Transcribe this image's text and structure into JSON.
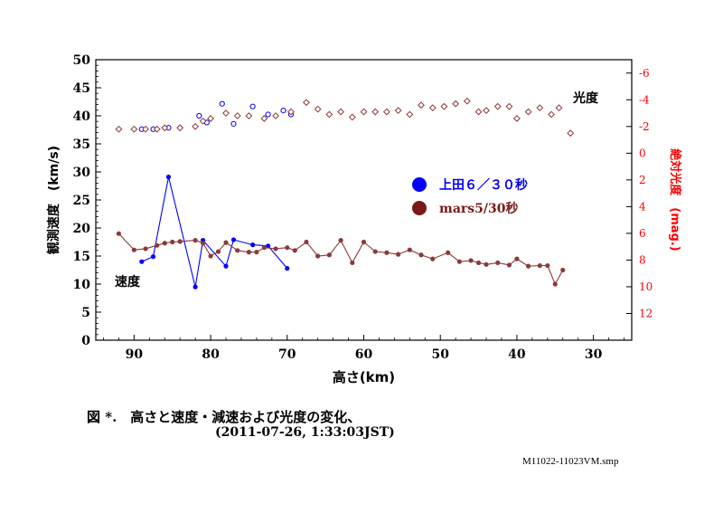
{
  "caption": {
    "line1": "図 *.　高さと速度・減速および光度の変化、",
    "line2": "(2011-07-26,  1:33:03JST)"
  },
  "filename": "M11022-11023VM.smp",
  "chart_data": {
    "type": "scatter",
    "xlabel": "高さ(km)",
    "ylabel": "観測速度　(km/s)",
    "y2label": "絶対光度　(mag.)",
    "xlim": [
      95,
      25
    ],
    "ylim": [
      0,
      50
    ],
    "y2lim": [
      14,
      -7
    ],
    "x_ticks": [
      90,
      80,
      70,
      60,
      50,
      40,
      30
    ],
    "y_ticks": [
      0,
      5,
      10,
      15,
      20,
      25,
      30,
      35,
      40,
      45,
      50
    ],
    "y2_ticks": [
      -6,
      -4,
      -2,
      0,
      2,
      4,
      6,
      8,
      10,
      12
    ],
    "annotations": {
      "magnitude": "光度",
      "velocity": "速度"
    },
    "legend": [
      {
        "name": "上田６／３０秒",
        "color": "#0000ff"
      },
      {
        "name": "mars5/30秒",
        "color": "#7a1818"
      }
    ],
    "colors": {
      "blue": "#0000ff",
      "brown": "#8b3a3a",
      "red": "#ff0000",
      "axis": "#000000"
    },
    "series": [
      {
        "name": "上田 速度",
        "role": "velocity",
        "color": "#0000ff",
        "marker": "filled-circle",
        "x": [
          89,
          87.5,
          85.5,
          82,
          81,
          78,
          77,
          74.5,
          72.5,
          70
        ],
        "y": [
          14.0,
          14.9,
          29.1,
          9.5,
          17.8,
          13.2,
          17.9,
          17.0,
          16.8,
          12.8
        ]
      },
      {
        "name": "mars 速度",
        "role": "velocity",
        "color": "#8b3a3a",
        "marker": "filled-circle",
        "x": [
          92,
          90,
          88.5,
          87,
          86,
          85,
          84,
          82,
          81,
          80,
          79,
          78,
          76.5,
          75,
          74,
          73,
          71.5,
          70,
          69,
          67.5,
          66,
          64.5,
          63,
          61.5,
          60,
          58.5,
          57,
          55.5,
          54,
          52.5,
          51,
          49,
          47.5,
          46,
          45,
          44,
          42.5,
          41,
          40,
          38.5,
          37,
          36,
          35,
          34
        ],
        "y": [
          19.0,
          16.1,
          16.3,
          16.9,
          17.3,
          17.5,
          17.6,
          17.8,
          17.3,
          15.0,
          15.8,
          17.4,
          16.0,
          15.7,
          15.7,
          16.5,
          16.3,
          16.5,
          16.0,
          17.5,
          15.0,
          15.2,
          17.8,
          13.8,
          17.5,
          15.8,
          15.6,
          15.3,
          16.1,
          15.2,
          14.5,
          15.6,
          14.0,
          14.2,
          13.8,
          13.5,
          13.8,
          13.4,
          14.5,
          13.2,
          13.3,
          13.3,
          10.0,
          12.5
        ]
      },
      {
        "name": "上田 光度",
        "role": "magnitude",
        "color": "#0000ff",
        "marker": "open-circle",
        "x": [
          89,
          87.5,
          85.5,
          81.5,
          80.5,
          78.5,
          77,
          74.5,
          72.5,
          70.5,
          69.5
        ],
        "y": [
          -1.8,
          -1.8,
          -1.9,
          -2.8,
          -2.3,
          -3.7,
          -2.2,
          -3.5,
          -2.9,
          -3.2,
          -2.9
        ]
      },
      {
        "name": "mars 光度",
        "role": "magnitude",
        "color": "#8b3a3a",
        "marker": "open-diamond",
        "x": [
          92,
          90,
          88.5,
          87,
          86,
          84,
          82,
          81,
          80,
          78,
          76.5,
          75,
          73,
          71.5,
          69.5,
          67.5,
          66,
          64.5,
          63,
          61.5,
          60,
          58.5,
          57,
          55.5,
          54,
          52.5,
          51,
          49.5,
          48,
          46.5,
          45,
          44,
          42.5,
          41,
          40,
          38.5,
          37,
          35.5,
          34.5,
          33
        ],
        "y": [
          -1.8,
          -1.8,
          -1.8,
          -1.8,
          -1.9,
          -1.9,
          -2.0,
          -2.4,
          -2.6,
          -3.0,
          -2.8,
          -2.8,
          -2.6,
          -2.8,
          -3.1,
          -3.8,
          -3.3,
          -2.9,
          -3.1,
          -2.7,
          -3.1,
          -3.1,
          -3.1,
          -3.2,
          -2.9,
          -3.6,
          -3.4,
          -3.5,
          -3.7,
          -3.9,
          -3.1,
          -3.2,
          -3.5,
          -3.5,
          -2.6,
          -3.1,
          -3.4,
          -2.9,
          -3.4,
          -1.5
        ]
      }
    ]
  }
}
